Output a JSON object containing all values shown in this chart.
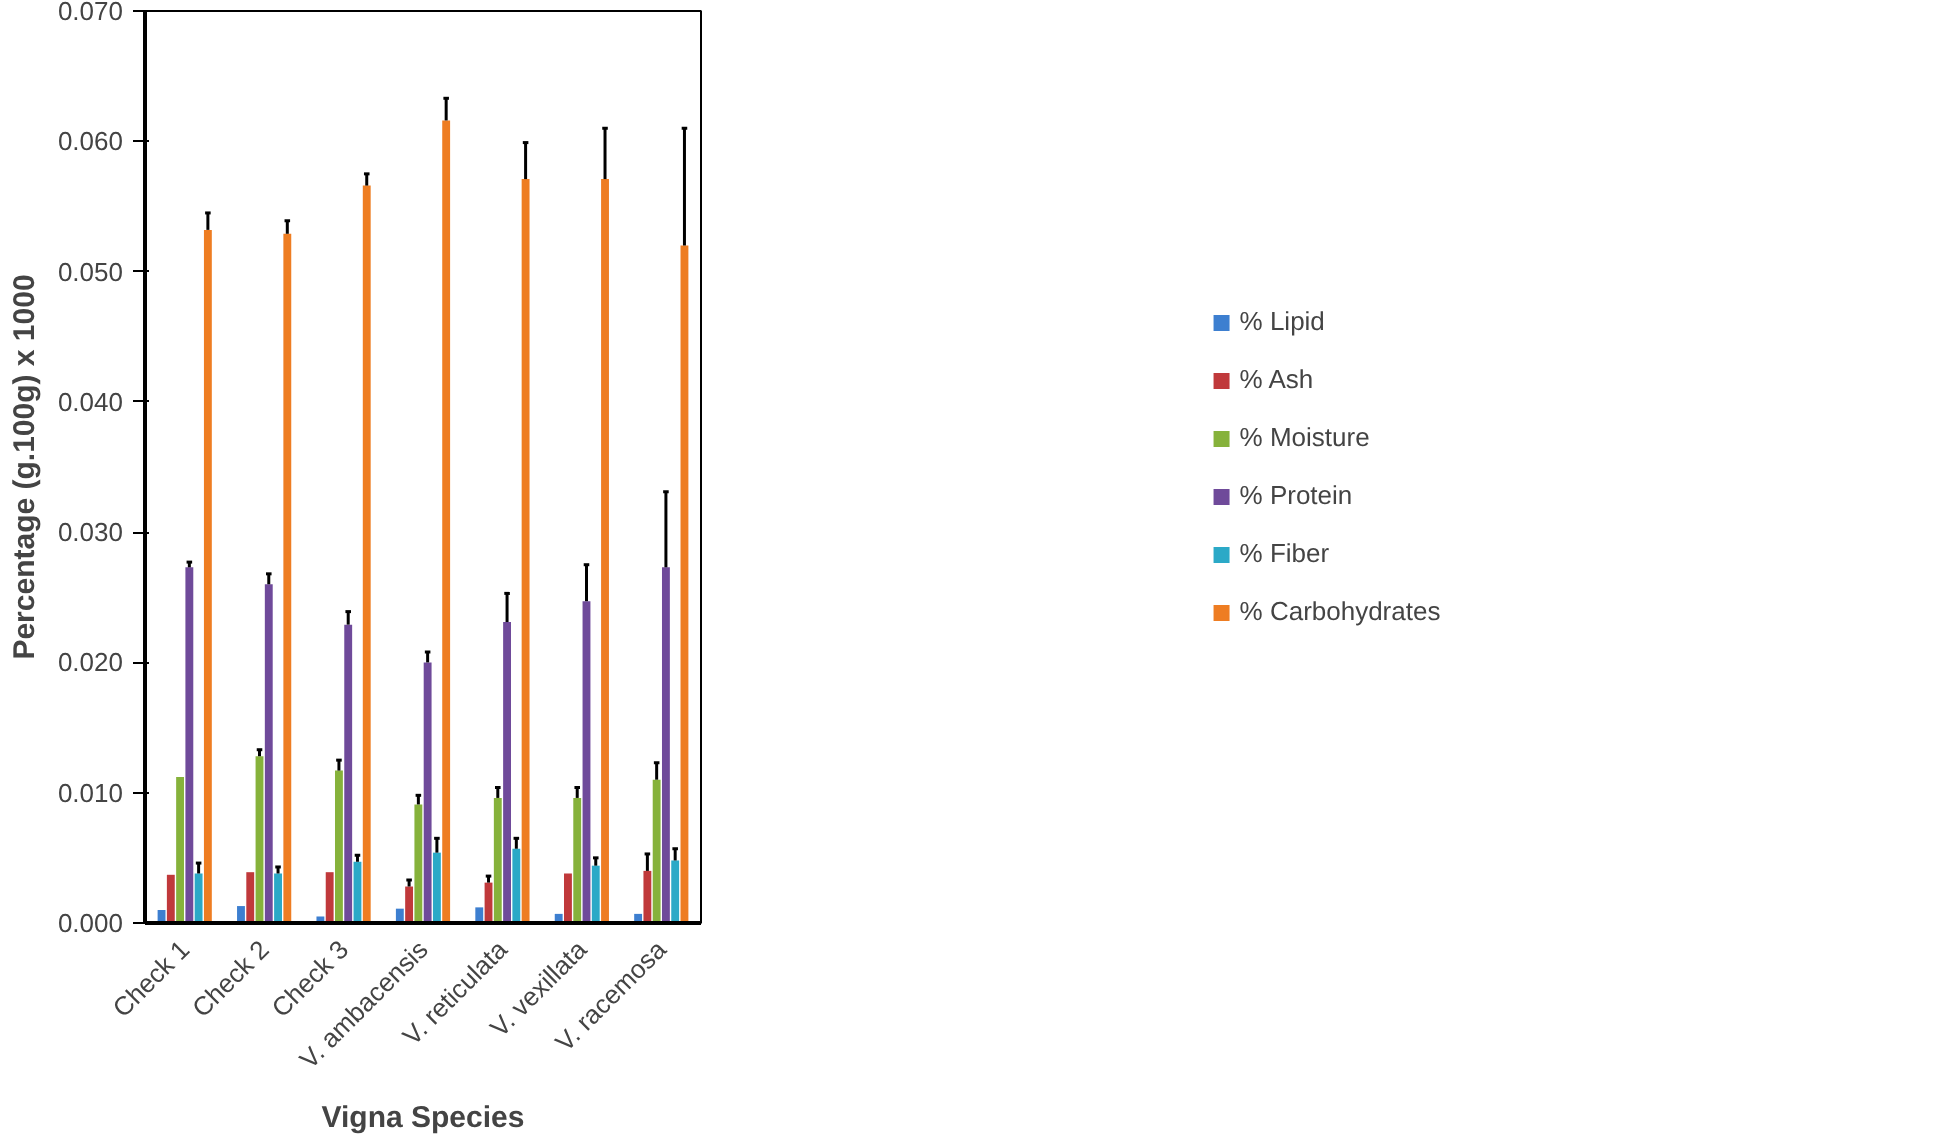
{
  "chart_data": {
    "type": "bar",
    "xlabel": "Vigna Species",
    "ylabel": "Percentage (g.100g) x 1000",
    "categories": [
      "Check 1",
      "Check 2",
      "Check 3",
      "V. ambacensis",
      "V. reticulata",
      "V. vexillata",
      "V. racemosa"
    ],
    "ylim": [
      0,
      0.07
    ],
    "yticks": [
      {
        "value": 0,
        "label": "0.000"
      },
      {
        "value": 0.01,
        "label": "0.010"
      },
      {
        "value": 0.02,
        "label": "0.020"
      },
      {
        "value": 0.03,
        "label": "0.030"
      },
      {
        "value": 0.04,
        "label": "0.040"
      },
      {
        "value": 0.05,
        "label": "0.050"
      },
      {
        "value": 0.06,
        "label": "0.060"
      },
      {
        "value": 0.07,
        "label": "0.070"
      }
    ],
    "grid": false,
    "legend": "right",
    "series": [
      {
        "name": "% Lipid",
        "color": "#3d7fd0",
        "values": [
          0.001,
          0.0013,
          0.0005,
          0.0011,
          0.0012,
          0.0007,
          0.0007
        ]
      },
      {
        "name": "% Ash",
        "color": "#c0393b",
        "values": [
          0.0037,
          0.0039,
          0.0039,
          0.0028,
          0.0031,
          0.0038,
          0.004
        ],
        "errors": [
          null,
          null,
          null,
          [
            0.0028,
            0.0033
          ],
          [
            0.0031,
            0.0036
          ],
          null,
          [
            0.004,
            0.0053
          ]
        ]
      },
      {
        "name": "% Moisture",
        "color": "#86b23b",
        "values": [
          0.0112,
          0.0128,
          0.0117,
          0.0091,
          0.0096,
          0.0096,
          0.011
        ],
        "errors": [
          null,
          [
            0.0128,
            0.0133
          ],
          [
            0.0117,
            0.0125
          ],
          [
            0.0091,
            0.0098
          ],
          [
            0.0096,
            0.0104
          ],
          [
            0.0096,
            0.0104
          ],
          [
            0.011,
            0.0123
          ]
        ]
      },
      {
        "name": "% Protein",
        "color": "#6f4a9a",
        "values": [
          0.0273,
          0.026,
          0.0229,
          0.02,
          0.0231,
          0.0247,
          0.0273
        ],
        "errors": [
          [
            0.0273,
            0.0277
          ],
          [
            0.026,
            0.0268
          ],
          [
            0.0229,
            0.0239
          ],
          [
            0.02,
            0.0208
          ],
          [
            0.0231,
            0.0253
          ],
          [
            0.0247,
            0.0275
          ],
          [
            0.0273,
            0.0331
          ]
        ]
      },
      {
        "name": "% Fiber",
        "color": "#2ba9c7",
        "values": [
          0.0038,
          0.0038,
          0.0047,
          0.0054,
          0.0057,
          0.0044,
          0.0048
        ],
        "errors": [
          [
            0.0038,
            0.0046
          ],
          [
            0.0038,
            0.0043
          ],
          [
            0.0047,
            0.0052
          ],
          [
            0.0054,
            0.0065
          ],
          [
            0.0057,
            0.0065
          ],
          [
            0.0044,
            0.005
          ],
          [
            0.0048,
            0.0057
          ]
        ]
      },
      {
        "name": "% Carbohydrates",
        "color": "#ee7d22",
        "values": [
          0.0532,
          0.0529,
          0.0566,
          0.0616,
          0.0571,
          0.0571,
          0.052
        ],
        "errors": [
          [
            0.0532,
            0.0545
          ],
          [
            0.0529,
            0.0539
          ],
          [
            0.0566,
            0.0575
          ],
          [
            0.0616,
            0.0633
          ],
          [
            0.0571,
            0.0599
          ],
          [
            0.0571,
            0.061
          ],
          [
            0.052,
            0.061
          ]
        ]
      }
    ]
  }
}
